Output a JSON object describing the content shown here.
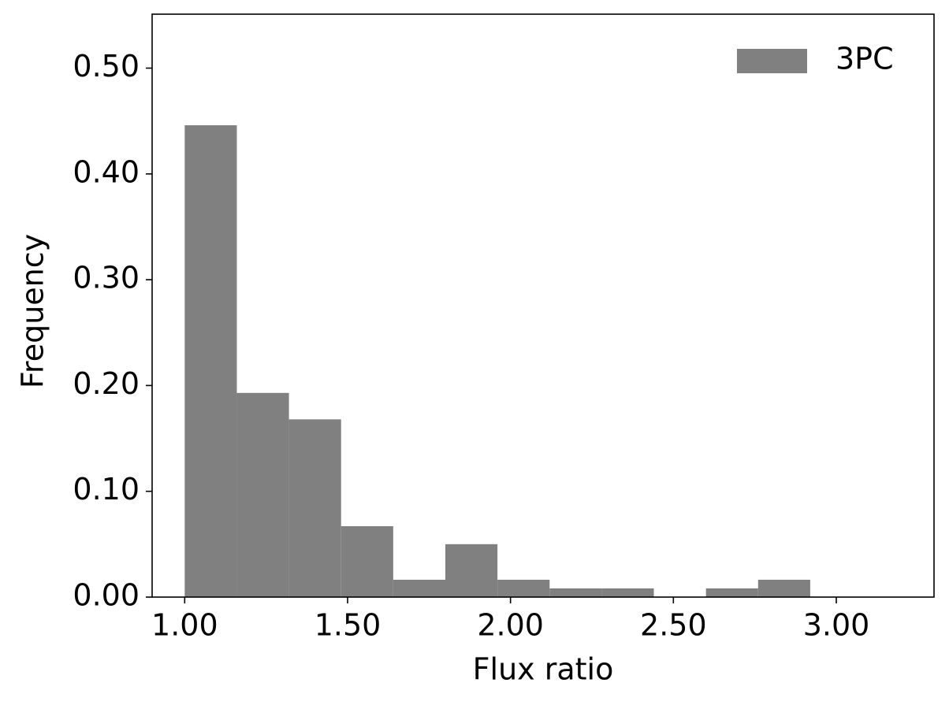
{
  "chart_data": {
    "type": "histogram",
    "xlabel": "Flux ratio",
    "ylabel": "Frequency",
    "bins": [
      1.0,
      1.16,
      1.32,
      1.48,
      1.64,
      1.8,
      1.96,
      2.12,
      2.28,
      2.44,
      2.6,
      2.76,
      2.92
    ],
    "series": [
      {
        "name": "3PC",
        "color": "#808080",
        "values": [
          0.446,
          0.193,
          0.168,
          0.067,
          0.0164,
          0.05,
          0.0164,
          0.0082,
          0.0082,
          0,
          0.0082,
          0.0164
        ]
      }
    ],
    "xlim": [
      0.9,
      3.3
    ],
    "ylim": [
      0,
      0.551
    ],
    "xticks": [
      {
        "value": 1.0,
        "label": "1.00"
      },
      {
        "value": 1.5,
        "label": "1.50"
      },
      {
        "value": 2.0,
        "label": "2.00"
      },
      {
        "value": 2.5,
        "label": "2.50"
      },
      {
        "value": 3.0,
        "label": "3.00"
      }
    ],
    "yticks": [
      {
        "value": 0,
        "label": "0.00"
      },
      {
        "value": 0.1,
        "label": "0.10"
      },
      {
        "value": 0.2,
        "label": "0.20"
      },
      {
        "value": 0.3,
        "label": "0.30"
      },
      {
        "value": 0.4,
        "label": "0.40"
      },
      {
        "value": 0.5,
        "label": "0.50"
      }
    ],
    "legend": "upper right",
    "grid": false
  }
}
